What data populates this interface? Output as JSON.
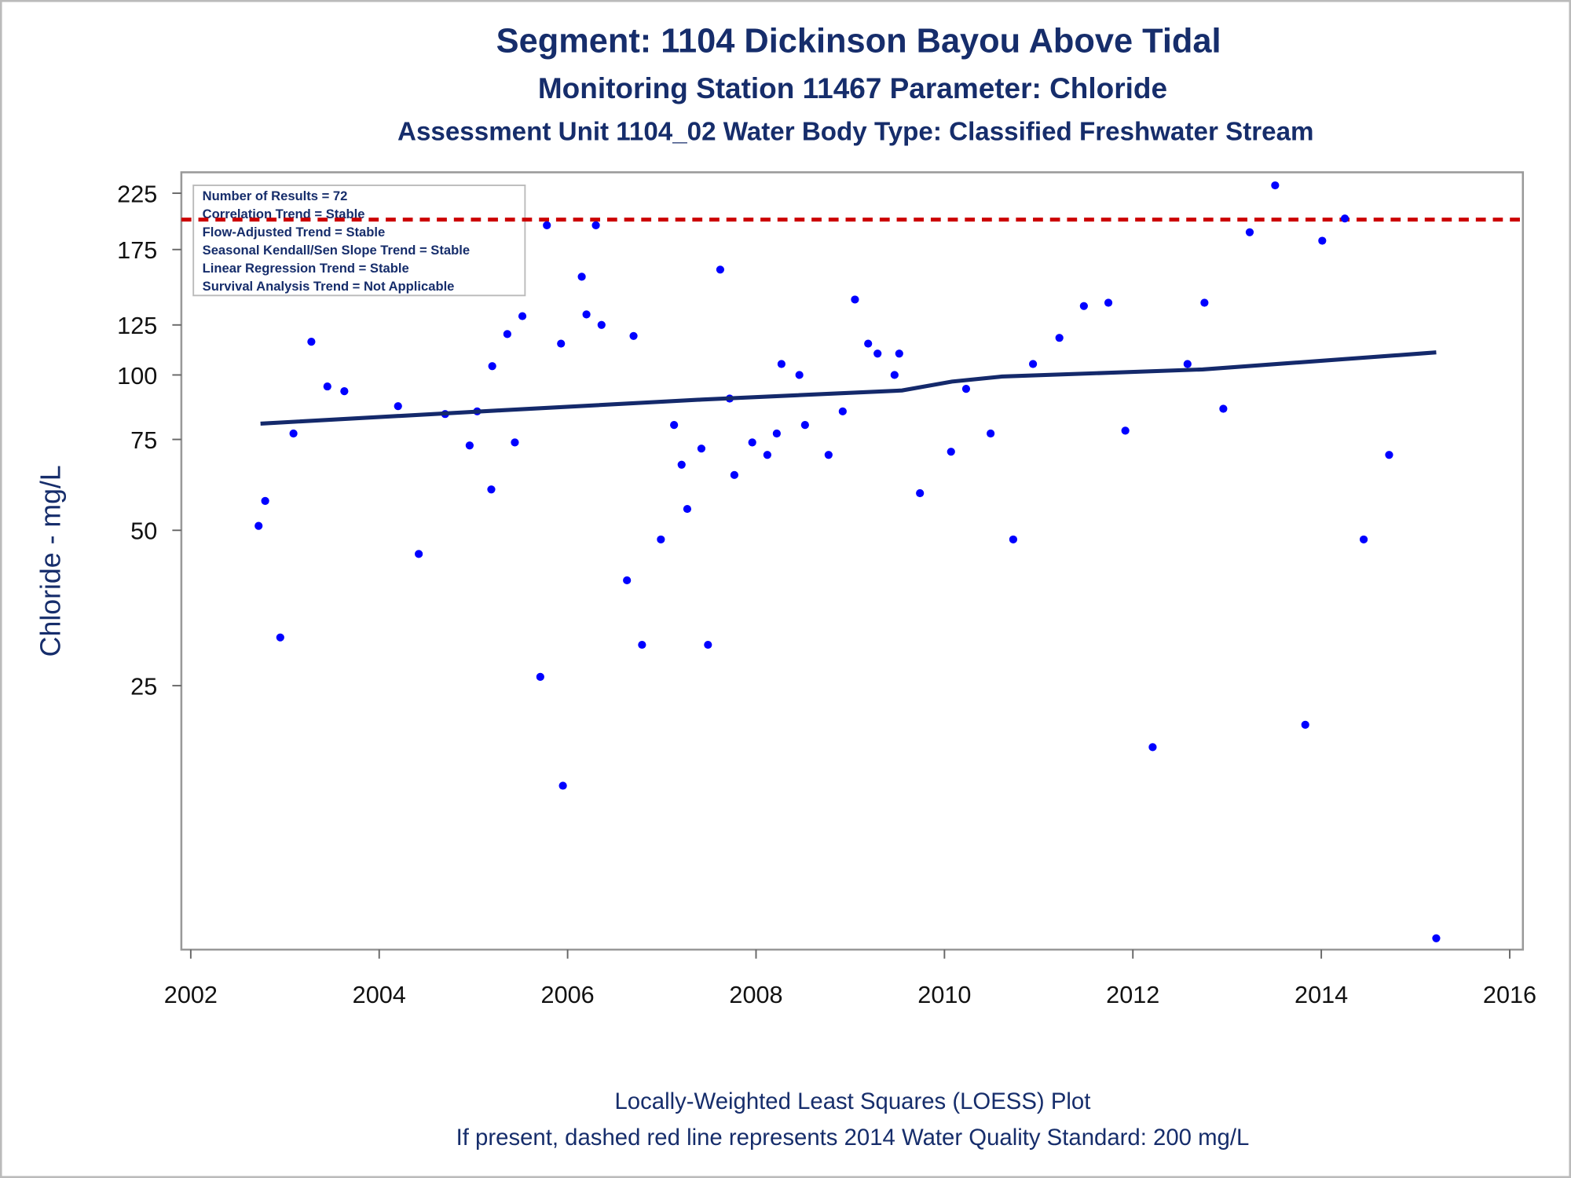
{
  "chart_data": {
    "type": "scatter",
    "title": "Segment: 1104  Dickinson Bayou Above Tidal",
    "subtitles": [
      "Monitoring Station 11467 Parameter: Chloride",
      "Assessment Unit 1104_02   Water Body Type: Classified Freshwater Stream"
    ],
    "ylabel": "Chloride - mg/L",
    "footnotes": [
      "Locally-Weighted Least Squares (LOESS) Plot",
      "If present, dashed red line represents 2014 Water Quality Standard: 200    mg/L"
    ],
    "stats_box": [
      "Number of Results = 72",
      "Correlation Trend = Stable",
      "Flow-Adjusted Trend = Stable",
      "Seasonal Kendall/Sen Slope Trend = Stable",
      "Linear Regression Trend = Stable",
      "Survival Analysis Trend = Not Applicable"
    ],
    "log_y": true,
    "xlim": [
      2001.9,
      2016.14
    ],
    "xticks": [
      2002,
      2004,
      2006,
      2008,
      2010,
      2012,
      2014,
      2016
    ],
    "ylim": [
      7.7,
      247
    ],
    "yticks": [
      25,
      50,
      75,
      100,
      125,
      175,
      225
    ],
    "color": "#0000ff",
    "x": [
      2002.72,
      2002.79,
      2002.95,
      2003.09,
      2003.28,
      2003.45,
      2003.63,
      2004.2,
      2004.42,
      2004.7,
      2004.96,
      2005.04,
      2005.19,
      2005.2,
      2005.36,
      2005.44,
      2005.52,
      2005.71,
      2005.78,
      2005.93,
      2005.95,
      2006.15,
      2006.2,
      2006.3,
      2006.36,
      2006.63,
      2006.7,
      2006.79,
      2006.99,
      2007.13,
      2007.21,
      2007.27,
      2007.42,
      2007.49,
      2007.62,
      2007.72,
      2007.77,
      2007.96,
      2008.12,
      2008.22,
      2008.27,
      2008.46,
      2008.52,
      2008.77,
      2008.92,
      2009.05,
      2009.19,
      2009.29,
      2009.47,
      2009.52,
      2009.74,
      2010.07,
      2010.23,
      2010.49,
      2010.73,
      2010.94,
      2011.22,
      2011.48,
      2011.74,
      2011.92,
      2012.21,
      2012.58,
      2012.76,
      2012.96,
      2013.24,
      2013.51,
      2013.83,
      2014.01,
      2014.25,
      2014.45,
      2014.72,
      2015.22
    ],
    "values": [
      51,
      57,
      31,
      77,
      116,
      95,
      93,
      87,
      45,
      84,
      73,
      85,
      60,
      104,
      120,
      74,
      130,
      26,
      195,
      115,
      16,
      155,
      131,
      195,
      125,
      40,
      119,
      30,
      48,
      80,
      67,
      55,
      72,
      30,
      160,
      90,
      64,
      74,
      70,
      77,
      105,
      100,
      80,
      70,
      85,
      140,
      115,
      110,
      100,
      110,
      59,
      71,
      94,
      77,
      48,
      105,
      118,
      136,
      138,
      78,
      19,
      105,
      138,
      86,
      189,
      233,
      21,
      182,
      201,
      48,
      70,
      8.1
    ],
    "trend": {
      "color": "#14296b",
      "x": [
        2002.74,
        2005.3,
        2007.42,
        2009.55,
        2010.08,
        2010.61,
        2012.74,
        2015.22
      ],
      "values": [
        80.5,
        85.4,
        89.6,
        93.3,
        97.1,
        99.3,
        102.5,
        110.6
      ]
    },
    "reference_line": {
      "value": 200,
      "color": "#cc0000"
    }
  }
}
